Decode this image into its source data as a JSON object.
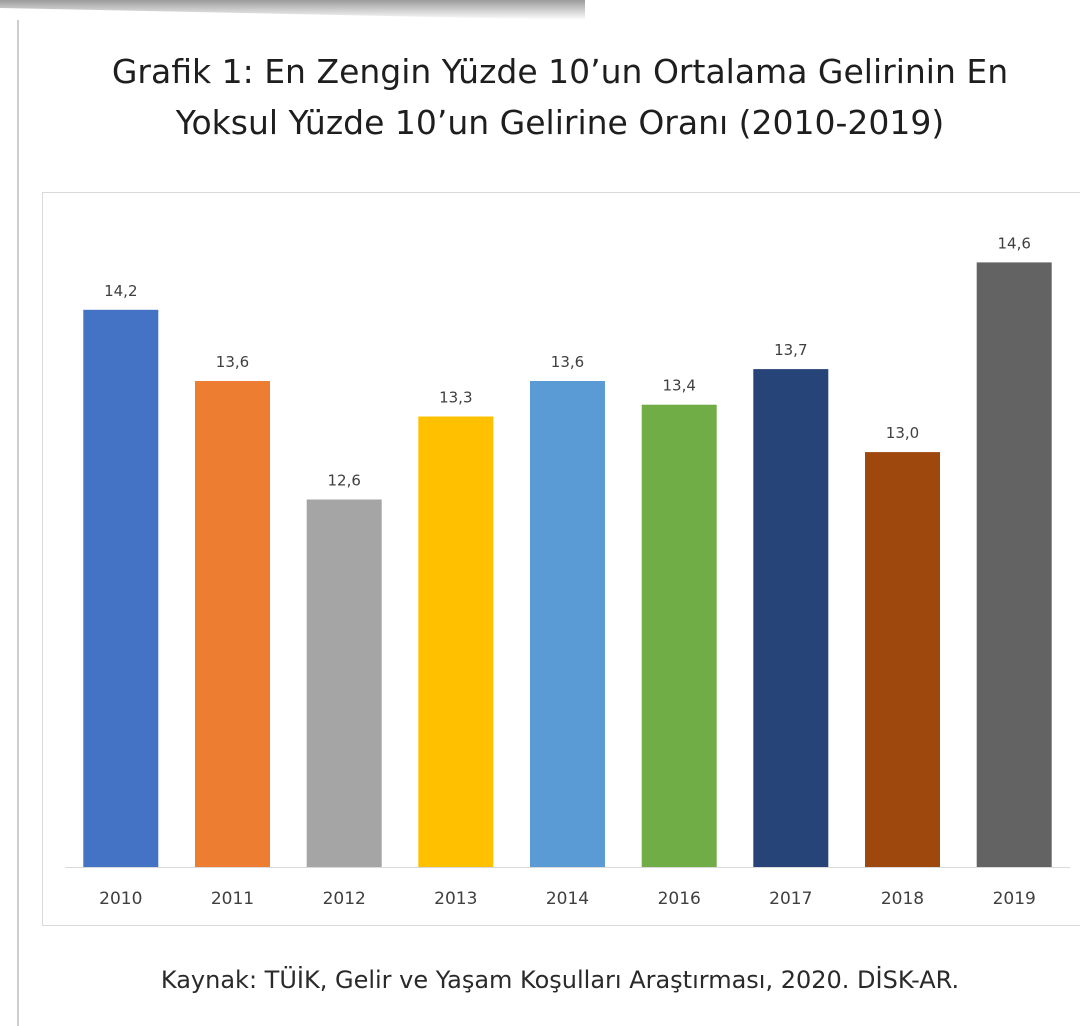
{
  "chart_data": {
    "type": "bar",
    "title_line1": "Grafik 1: En Zengin Yüzde 10’un Ortalama Gelirinin En",
    "title_line2": "Yoksul Yüzde 10’un Gelirine Oranı (2010-2019)",
    "xlabel": "",
    "ylabel": "",
    "categories": [
      "2010",
      "2011",
      "2012",
      "2013",
      "2014",
      "2016",
      "2017",
      "2018",
      "2019"
    ],
    "values": [
      14.2,
      13.6,
      12.6,
      13.3,
      13.6,
      13.4,
      13.7,
      13.0,
      14.6
    ],
    "value_labels": [
      "14,2",
      "13,6",
      "12,6",
      "13,3",
      "13,6",
      "13,4",
      "13,7",
      "13,0",
      "14,6"
    ],
    "bar_colors": [
      "#4472C4",
      "#ED7D31",
      "#A5A5A5",
      "#FFC000",
      "#5B9BD5",
      "#70AD47",
      "#264478",
      "#9E480E",
      "#636363"
    ],
    "ylim": [
      9.5,
      15.0
    ],
    "grid": false,
    "legend": "none",
    "axis_visible": false
  },
  "source": "Kaynak: TÜİK, Gelir ve Yaşam Koşulları Araştırması, 2020. DİSK-AR."
}
